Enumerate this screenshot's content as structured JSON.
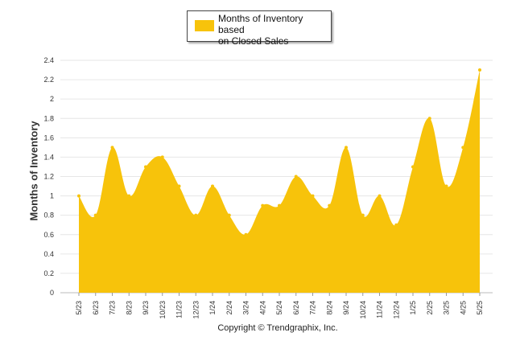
{
  "chart_data": {
    "type": "area",
    "categories": [
      "5/23",
      "6/23",
      "7/23",
      "8/23",
      "9/23",
      "10/23",
      "11/23",
      "12/23",
      "1/24",
      "2/24",
      "3/24",
      "4/24",
      "5/24",
      "6/24",
      "7/24",
      "8/24",
      "9/24",
      "10/24",
      "11/24",
      "12/24",
      "1/25",
      "2/25",
      "3/25",
      "4/25",
      "5/25"
    ],
    "series": [
      {
        "name": "Months of Inventory based on Closed Sales",
        "values": [
          1.0,
          0.8,
          1.5,
          1.0,
          1.3,
          1.4,
          1.1,
          0.8,
          1.1,
          0.8,
          0.6,
          0.9,
          0.9,
          1.2,
          1.0,
          0.9,
          1.5,
          0.8,
          1.0,
          0.7,
          1.3,
          1.8,
          1.1,
          1.5,
          2.3
        ]
      }
    ],
    "ylabel": "Months of Inventory",
    "xlabel": "",
    "ylim": [
      0,
      2.4
    ],
    "yticks": [
      "0",
      "0.2",
      "0.4",
      "0.6",
      "0.8",
      "1",
      "1.2",
      "1.4",
      "1.6",
      "1.8",
      "2",
      "2.2",
      "2.4"
    ],
    "grid": true,
    "legend_position": "top",
    "color": "#F7C30B"
  },
  "legend": {
    "label_line1": "Months of Inventory based",
    "label_line2": "on Closed Sales"
  },
  "footer": {
    "copyright": "Copyright © Trendgraphix, Inc."
  }
}
